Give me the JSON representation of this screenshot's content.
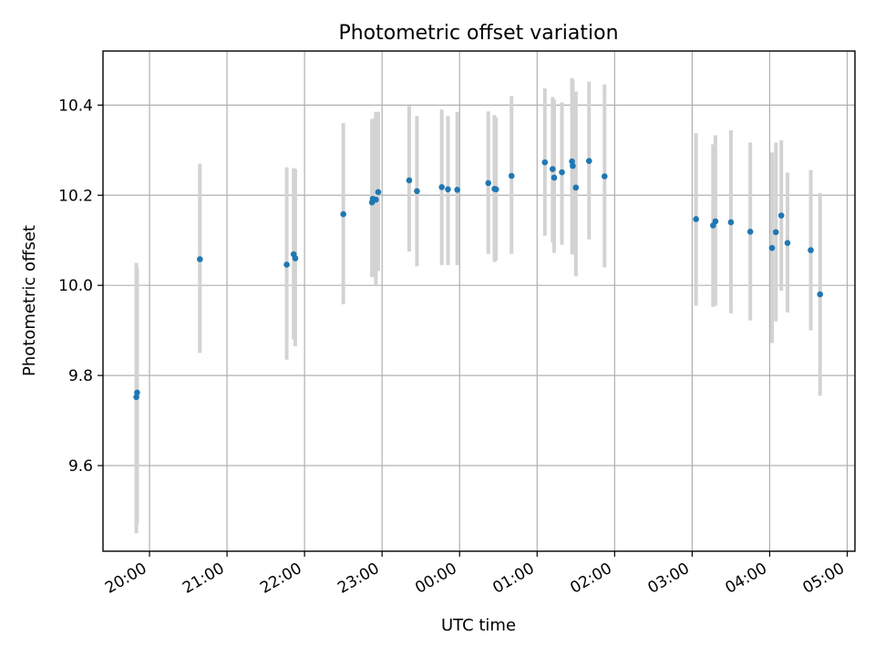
{
  "chart_data": {
    "type": "scatter",
    "title": "Photometric offset variation",
    "xlabel": "UTC time",
    "ylabel": "Photometric offset",
    "xlim_hours": [
      19.4,
      29.1
    ],
    "ylim": [
      9.41,
      10.52
    ],
    "grid": true,
    "x_ticks": [
      {
        "h": 20,
        "label": "20:00"
      },
      {
        "h": 21,
        "label": "21:00"
      },
      {
        "h": 22,
        "label": "22:00"
      },
      {
        "h": 23,
        "label": "23:00"
      },
      {
        "h": 24,
        "label": "00:00"
      },
      {
        "h": 25,
        "label": "01:00"
      },
      {
        "h": 26,
        "label": "02:00"
      },
      {
        "h": 27,
        "label": "03:00"
      },
      {
        "h": 28,
        "label": "04:00"
      },
      {
        "h": 29,
        "label": "05:00"
      }
    ],
    "y_ticks": [
      {
        "v": 9.6,
        "label": "9.6"
      },
      {
        "v": 9.8,
        "label": "9.8"
      },
      {
        "v": 10.0,
        "label": "10.0"
      },
      {
        "v": 10.2,
        "label": "10.2"
      },
      {
        "v": 10.4,
        "label": "10.4"
      }
    ],
    "series": [
      {
        "points": [
          {
            "x": 19.83,
            "y": 9.752,
            "lo": 9.45,
            "hi": 10.05
          },
          {
            "x": 19.84,
            "y": 9.762,
            "lo": 9.47,
            "hi": 10.04
          },
          {
            "x": 20.65,
            "y": 10.058,
            "lo": 9.85,
            "hi": 10.27
          },
          {
            "x": 21.77,
            "y": 10.046,
            "lo": 9.835,
            "hi": 10.262
          },
          {
            "x": 21.86,
            "y": 10.069,
            "lo": 9.88,
            "hi": 10.26
          },
          {
            "x": 21.88,
            "y": 10.06,
            "lo": 9.865,
            "hi": 10.258
          },
          {
            "x": 22.5,
            "y": 10.158,
            "lo": 9.958,
            "hi": 10.36
          },
          {
            "x": 22.87,
            "y": 10.184,
            "lo": 10.018,
            "hi": 10.368
          },
          {
            "x": 22.88,
            "y": 10.192,
            "lo": 10.02,
            "hi": 10.37
          },
          {
            "x": 22.92,
            "y": 10.19,
            "lo": 10.0,
            "hi": 10.385
          },
          {
            "x": 22.95,
            "y": 10.207,
            "lo": 10.032,
            "hi": 10.385
          },
          {
            "x": 23.35,
            "y": 10.233,
            "lo": 10.075,
            "hi": 10.398
          },
          {
            "x": 23.45,
            "y": 10.209,
            "lo": 10.042,
            "hi": 10.376
          },
          {
            "x": 23.77,
            "y": 10.218,
            "lo": 10.045,
            "hi": 10.39
          },
          {
            "x": 23.85,
            "y": 10.213,
            "lo": 10.045,
            "hi": 10.376
          },
          {
            "x": 23.97,
            "y": 10.212,
            "lo": 10.045,
            "hi": 10.385
          },
          {
            "x": 24.37,
            "y": 10.227,
            "lo": 10.07,
            "hi": 10.386
          },
          {
            "x": 24.45,
            "y": 10.214,
            "lo": 10.052,
            "hi": 10.378
          },
          {
            "x": 24.47,
            "y": 10.213,
            "lo": 10.055,
            "hi": 10.372
          },
          {
            "x": 24.67,
            "y": 10.243,
            "lo": 10.07,
            "hi": 10.42
          },
          {
            "x": 25.1,
            "y": 10.273,
            "lo": 10.11,
            "hi": 10.437
          },
          {
            "x": 25.2,
            "y": 10.258,
            "lo": 10.095,
            "hi": 10.418
          },
          {
            "x": 25.22,
            "y": 10.239,
            "lo": 10.072,
            "hi": 10.412
          },
          {
            "x": 25.32,
            "y": 10.251,
            "lo": 10.09,
            "hi": 10.406
          },
          {
            "x": 25.45,
            "y": 10.275,
            "lo": 10.07,
            "hi": 10.46
          },
          {
            "x": 25.46,
            "y": 10.265,
            "lo": 10.068,
            "hi": 10.455
          },
          {
            "x": 25.5,
            "y": 10.217,
            "lo": 10.02,
            "hi": 10.43
          },
          {
            "x": 25.67,
            "y": 10.276,
            "lo": 10.102,
            "hi": 10.452
          },
          {
            "x": 25.87,
            "y": 10.242,
            "lo": 10.04,
            "hi": 10.446
          },
          {
            "x": 27.05,
            "y": 10.147,
            "lo": 9.955,
            "hi": 10.338
          },
          {
            "x": 27.27,
            "y": 10.133,
            "lo": 9.952,
            "hi": 10.313
          },
          {
            "x": 27.3,
            "y": 10.142,
            "lo": 9.955,
            "hi": 10.333
          },
          {
            "x": 27.5,
            "y": 10.14,
            "lo": 9.938,
            "hi": 10.344
          },
          {
            "x": 27.75,
            "y": 10.119,
            "lo": 9.922,
            "hi": 10.317
          },
          {
            "x": 28.03,
            "y": 10.083,
            "lo": 9.872,
            "hi": 10.295
          },
          {
            "x": 28.08,
            "y": 10.118,
            "lo": 9.92,
            "hi": 10.317
          },
          {
            "x": 28.15,
            "y": 10.155,
            "lo": 9.988,
            "hi": 10.322
          },
          {
            "x": 28.23,
            "y": 10.094,
            "lo": 9.94,
            "hi": 10.25
          },
          {
            "x": 28.53,
            "y": 10.078,
            "lo": 9.9,
            "hi": 10.256
          },
          {
            "x": 28.65,
            "y": 9.98,
            "lo": 9.755,
            "hi": 10.205
          }
        ]
      }
    ]
  },
  "colors": {
    "point": "#1f77b4",
    "errorbar": "#d3d3d3",
    "grid": "#b0b0b0"
  }
}
